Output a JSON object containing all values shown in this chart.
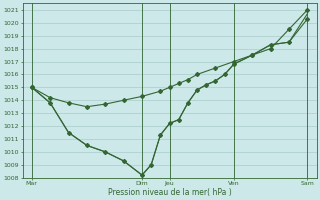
{
  "xlabel": "Pression niveau de la mer( hPa )",
  "bg_color": "#cce8e8",
  "grid_color": "#aacccc",
  "line_color": "#336633",
  "ylim_min": 1008,
  "ylim_max": 1021.5,
  "yticks": [
    1008,
    1009,
    1010,
    1011,
    1012,
    1013,
    1014,
    1015,
    1016,
    1017,
    1018,
    1019,
    1020,
    1021
  ],
  "xtick_positions": [
    0,
    12,
    15,
    22,
    30
  ],
  "xtick_labels": [
    "Mar",
    "Dim",
    "Jeu",
    "Ven",
    "Sam"
  ],
  "series1_x": [
    0,
    2,
    4,
    6,
    8,
    10,
    12,
    14,
    15,
    16,
    17,
    18,
    20,
    22,
    24,
    26,
    28,
    30
  ],
  "series1_y": [
    1015.0,
    1014.2,
    1013.8,
    1013.5,
    1013.7,
    1014.0,
    1014.3,
    1014.7,
    1015.0,
    1015.3,
    1015.6,
    1016.0,
    1016.5,
    1017.0,
    1017.5,
    1018.0,
    1019.5,
    1021.0
  ],
  "series2_x": [
    0,
    2,
    4,
    6,
    8,
    10,
    12,
    13,
    14,
    15,
    16,
    17,
    18,
    19,
    20,
    21,
    22,
    24,
    26,
    28,
    30
  ],
  "series2_y": [
    1015.0,
    1013.8,
    1011.5,
    1010.5,
    1010.0,
    1009.3,
    1008.2,
    1009.0,
    1011.3,
    1012.2,
    1012.5,
    1013.8,
    1014.8,
    1015.2,
    1015.5,
    1016.0,
    1016.8,
    1017.5,
    1018.3,
    1018.5,
    1020.3
  ],
  "series3_x": [
    0,
    2,
    4,
    6,
    8,
    10,
    12,
    13,
    14,
    15,
    16,
    17,
    18,
    19,
    20,
    21,
    22,
    24,
    26,
    28,
    30
  ],
  "series3_y": [
    1015.0,
    1013.8,
    1011.5,
    1010.5,
    1010.0,
    1009.3,
    1008.2,
    1009.0,
    1011.3,
    1012.2,
    1012.5,
    1013.8,
    1014.8,
    1015.2,
    1015.5,
    1016.0,
    1016.8,
    1017.5,
    1018.3,
    1018.5,
    1020.7
  ]
}
